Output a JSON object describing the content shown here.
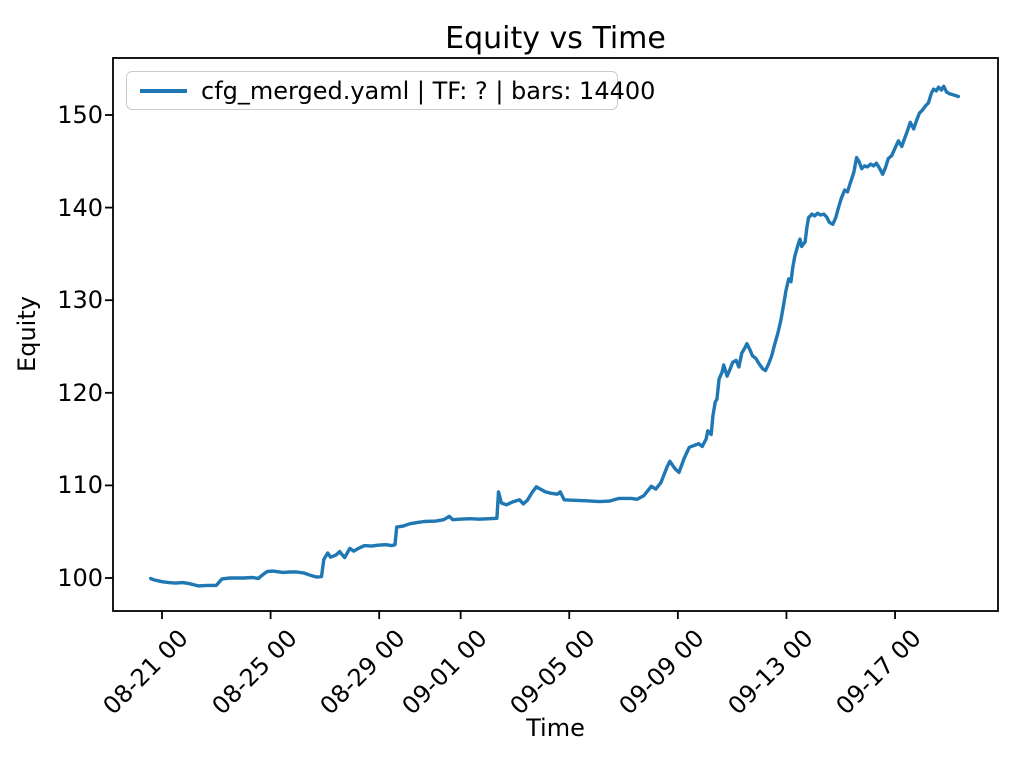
{
  "chart_data": {
    "type": "line",
    "title": "Equity vs Time",
    "xlabel": "Time",
    "ylabel": "Equity",
    "legend_position": "upper left",
    "grid": false,
    "line_color": "#1f77b4",
    "text_color": "#000000",
    "legend_border_color": "#cccccc",
    "yticks": [
      100,
      110,
      120,
      130,
      140,
      150
    ],
    "xticks": [
      "08-21 00",
      "08-25 00",
      "08-29 00",
      "09-01 00",
      "09-05 00",
      "09-09 00",
      "09-13 00",
      "09-17 00"
    ],
    "ylim": [
      96.4,
      156.1
    ],
    "xlim": [
      "08-19 05:00",
      "09-20 19:00"
    ],
    "series": [
      {
        "name": "cfg_merged.yaml | TF: ? | bars: 14400",
        "points": [
          [
            "08-20 14:00",
            99.95
          ],
          [
            "08-20 17:00",
            99.8
          ],
          [
            "08-21 00:00",
            99.6
          ],
          [
            "08-21 06:00",
            99.5
          ],
          [
            "08-21 12:00",
            99.45
          ],
          [
            "08-21 18:00",
            99.5
          ],
          [
            "08-22 00:00",
            99.4
          ],
          [
            "08-22 08:00",
            99.15
          ],
          [
            "08-22 16:00",
            99.2
          ],
          [
            "08-23 00:00",
            99.2
          ],
          [
            "08-23 05:00",
            99.9
          ],
          [
            "08-23 12:00",
            100.0
          ],
          [
            "08-24 00:00",
            100.0
          ],
          [
            "08-24 08:00",
            100.05
          ],
          [
            "08-24 13:00",
            99.95
          ],
          [
            "08-24 17:00",
            100.35
          ],
          [
            "08-24 21:00",
            100.7
          ],
          [
            "08-25 02:00",
            100.75
          ],
          [
            "08-25 11:00",
            100.6
          ],
          [
            "08-25 17:00",
            100.65
          ],
          [
            "08-25 23:00",
            100.65
          ],
          [
            "08-26 05:00",
            100.55
          ],
          [
            "08-26 11:00",
            100.3
          ],
          [
            "08-26 17:00",
            100.1
          ],
          [
            "08-26 21:00",
            100.15
          ],
          [
            "08-26 23:00",
            102.0
          ],
          [
            "08-27 02:30",
            102.7
          ],
          [
            "08-27 05:00",
            102.25
          ],
          [
            "08-27 10:00",
            102.5
          ],
          [
            "08-27 13:00",
            102.85
          ],
          [
            "08-27 17:30",
            102.2
          ],
          [
            "08-27 22:00",
            103.2
          ],
          [
            "08-28 01:30",
            102.9
          ],
          [
            "08-28 05:00",
            103.15
          ],
          [
            "08-28 11:00",
            103.5
          ],
          [
            "08-28 17:00",
            103.45
          ],
          [
            "08-29 00:00",
            103.55
          ],
          [
            "08-29 06:00",
            103.6
          ],
          [
            "08-29 11:00",
            103.5
          ],
          [
            "08-29 14:00",
            103.6
          ],
          [
            "08-29 15:30",
            105.5
          ],
          [
            "08-29 21:00",
            105.6
          ],
          [
            "08-30 03:00",
            105.85
          ],
          [
            "08-30 10:00",
            106.0
          ],
          [
            "08-30 16:00",
            106.1
          ],
          [
            "08-31 02:00",
            106.15
          ],
          [
            "08-31 09:00",
            106.3
          ],
          [
            "08-31 14:00",
            106.65
          ],
          [
            "08-31 17:00",
            106.3
          ],
          [
            "08-31 23:00",
            106.35
          ],
          [
            "09-01 08:00",
            106.4
          ],
          [
            "09-01 16:30",
            106.35
          ],
          [
            "09-02 01:30",
            106.4
          ],
          [
            "09-02 08:00",
            106.45
          ],
          [
            "09-02 09:30",
            109.3
          ],
          [
            "09-02 12:00",
            108.1
          ],
          [
            "09-02 16:30",
            107.9
          ],
          [
            "09-02 21:30",
            108.2
          ],
          [
            "09-03 04:00",
            108.45
          ],
          [
            "09-03 07:30",
            108.0
          ],
          [
            "09-03 11:00",
            108.4
          ],
          [
            "09-03 15:30",
            109.3
          ],
          [
            "09-03 19:00",
            109.85
          ],
          [
            "09-03 22:30",
            109.6
          ],
          [
            "09-04 03:00",
            109.3
          ],
          [
            "09-04 08:00",
            109.15
          ],
          [
            "09-04 13:30",
            109.05
          ],
          [
            "09-04 16:00",
            109.3
          ],
          [
            "09-04 19:30",
            108.45
          ],
          [
            "09-05 02:00",
            108.4
          ],
          [
            "09-05 13:00",
            108.35
          ],
          [
            "09-06 02:30",
            108.25
          ],
          [
            "09-06 11:30",
            108.3
          ],
          [
            "09-06 20:00",
            108.6
          ],
          [
            "09-07 07:00",
            108.6
          ],
          [
            "09-07 12:00",
            108.5
          ],
          [
            "09-07 18:00",
            108.9
          ],
          [
            "09-08 00:30",
            109.9
          ],
          [
            "09-08 04:30",
            109.6
          ],
          [
            "09-08 09:00",
            110.3
          ],
          [
            "09-08 14:30",
            112.0
          ],
          [
            "09-08 17:00",
            112.6
          ],
          [
            "09-08 21:30",
            111.8
          ],
          [
            "09-09 01:00",
            111.4
          ],
          [
            "09-09 05:30",
            112.9
          ],
          [
            "09-09 10:00",
            114.1
          ],
          [
            "09-09 14:00",
            114.3
          ],
          [
            "09-09 18:30",
            114.5
          ],
          [
            "09-09 21:30",
            114.2
          ],
          [
            "09-10 01:00",
            115.0
          ],
          [
            "09-10 02:30",
            115.9
          ],
          [
            "09-10 05:30",
            115.5
          ],
          [
            "09-10 07:00",
            117.5
          ],
          [
            "09-10 09:00",
            119.0
          ],
          [
            "09-10 10:30",
            119.3
          ],
          [
            "09-10 12:30",
            121.5
          ],
          [
            "09-10 15:00",
            122.2
          ],
          [
            "09-10 16:30",
            123.0
          ],
          [
            "09-10 19:30",
            121.8
          ],
          [
            "09-10 22:00",
            122.5
          ],
          [
            "09-11 00:30",
            123.3
          ],
          [
            "09-11 03:30",
            123.5
          ],
          [
            "09-11 06:00",
            122.8
          ],
          [
            "09-11 08:30",
            124.3
          ],
          [
            "09-11 11:00",
            124.8
          ],
          [
            "09-11 13:00",
            125.3
          ],
          [
            "09-11 15:30",
            124.7
          ],
          [
            "09-11 18:00",
            124.0
          ],
          [
            "09-11 21:00",
            123.7
          ],
          [
            "09-11 23:30",
            123.2
          ],
          [
            "09-12 03:00",
            122.6
          ],
          [
            "09-12 05:30",
            122.4
          ],
          [
            "09-12 08:30",
            123.2
          ],
          [
            "09-12 11:00",
            124.0
          ],
          [
            "09-12 13:30",
            125.2
          ],
          [
            "09-12 16:30",
            126.5
          ],
          [
            "09-12 19:00",
            127.8
          ],
          [
            "09-12 21:30",
            129.5
          ],
          [
            "09-12 23:30",
            131.0
          ],
          [
            "09-13 02:00",
            132.3
          ],
          [
            "09-13 04:00",
            132.0
          ],
          [
            "09-13 05:30",
            133.5
          ],
          [
            "09-13 07:30",
            134.8
          ],
          [
            "09-13 10:00",
            135.9
          ],
          [
            "09-13 12:00",
            136.6
          ],
          [
            "09-13 13:30",
            135.8
          ],
          [
            "09-13 16:30",
            136.3
          ],
          [
            "09-13 18:00",
            137.8
          ],
          [
            "09-13 19:30",
            138.9
          ],
          [
            "09-13 22:30",
            139.3
          ],
          [
            "09-14 01:00",
            139.1
          ],
          [
            "09-14 03:30",
            139.4
          ],
          [
            "09-14 06:00",
            139.2
          ],
          [
            "09-14 09:00",
            139.3
          ],
          [
            "09-14 11:30",
            139.0
          ],
          [
            "09-14 14:00",
            138.4
          ],
          [
            "09-14 17:00",
            138.2
          ],
          [
            "09-14 19:30",
            138.9
          ],
          [
            "09-14 22:00",
            140.0
          ],
          [
            "09-15 00:30",
            141.0
          ],
          [
            "09-15 03:30",
            141.9
          ],
          [
            "09-15 06:00",
            141.7
          ],
          [
            "09-15 08:30",
            142.7
          ],
          [
            "09-15 11:30",
            143.8
          ],
          [
            "09-15 14:00",
            145.4
          ],
          [
            "09-15 16:00",
            145.0
          ],
          [
            "09-15 18:30",
            144.2
          ],
          [
            "09-15 21:00",
            144.5
          ],
          [
            "09-15 23:30",
            144.4
          ],
          [
            "09-16 02:30",
            144.7
          ],
          [
            "09-16 05:00",
            144.5
          ],
          [
            "09-16 07:30",
            144.8
          ],
          [
            "09-16 10:30",
            144.2
          ],
          [
            "09-16 13:00",
            143.6
          ],
          [
            "09-16 15:30",
            144.3
          ],
          [
            "09-16 18:00",
            145.3
          ],
          [
            "09-16 21:00",
            145.6
          ],
          [
            "09-16 23:30",
            146.3
          ],
          [
            "09-17 03:00",
            147.2
          ],
          [
            "09-17 06:00",
            146.6
          ],
          [
            "09-17 08:30",
            147.5
          ],
          [
            "09-17 11:00",
            148.3
          ],
          [
            "09-17 13:30",
            149.2
          ],
          [
            "09-17 16:30",
            148.5
          ],
          [
            "09-17 19:00",
            149.4
          ],
          [
            "09-17 21:30",
            150.2
          ],
          [
            "09-18 00:00",
            150.5
          ],
          [
            "09-18 03:00",
            151.0
          ],
          [
            "09-18 05:30",
            151.3
          ],
          [
            "09-18 08:00",
            152.3
          ],
          [
            "09-18 10:00",
            152.8
          ],
          [
            "09-18 12:30",
            152.6
          ],
          [
            "09-18 14:30",
            153.0
          ],
          [
            "09-18 17:00",
            152.7
          ],
          [
            "09-18 19:00",
            153.1
          ],
          [
            "09-18 21:30",
            152.5
          ],
          [
            "09-19 00:00",
            152.3
          ],
          [
            "09-19 03:00",
            152.2
          ],
          [
            "09-19 05:30",
            152.1
          ],
          [
            "09-19 08:00",
            152.0
          ]
        ]
      }
    ]
  }
}
